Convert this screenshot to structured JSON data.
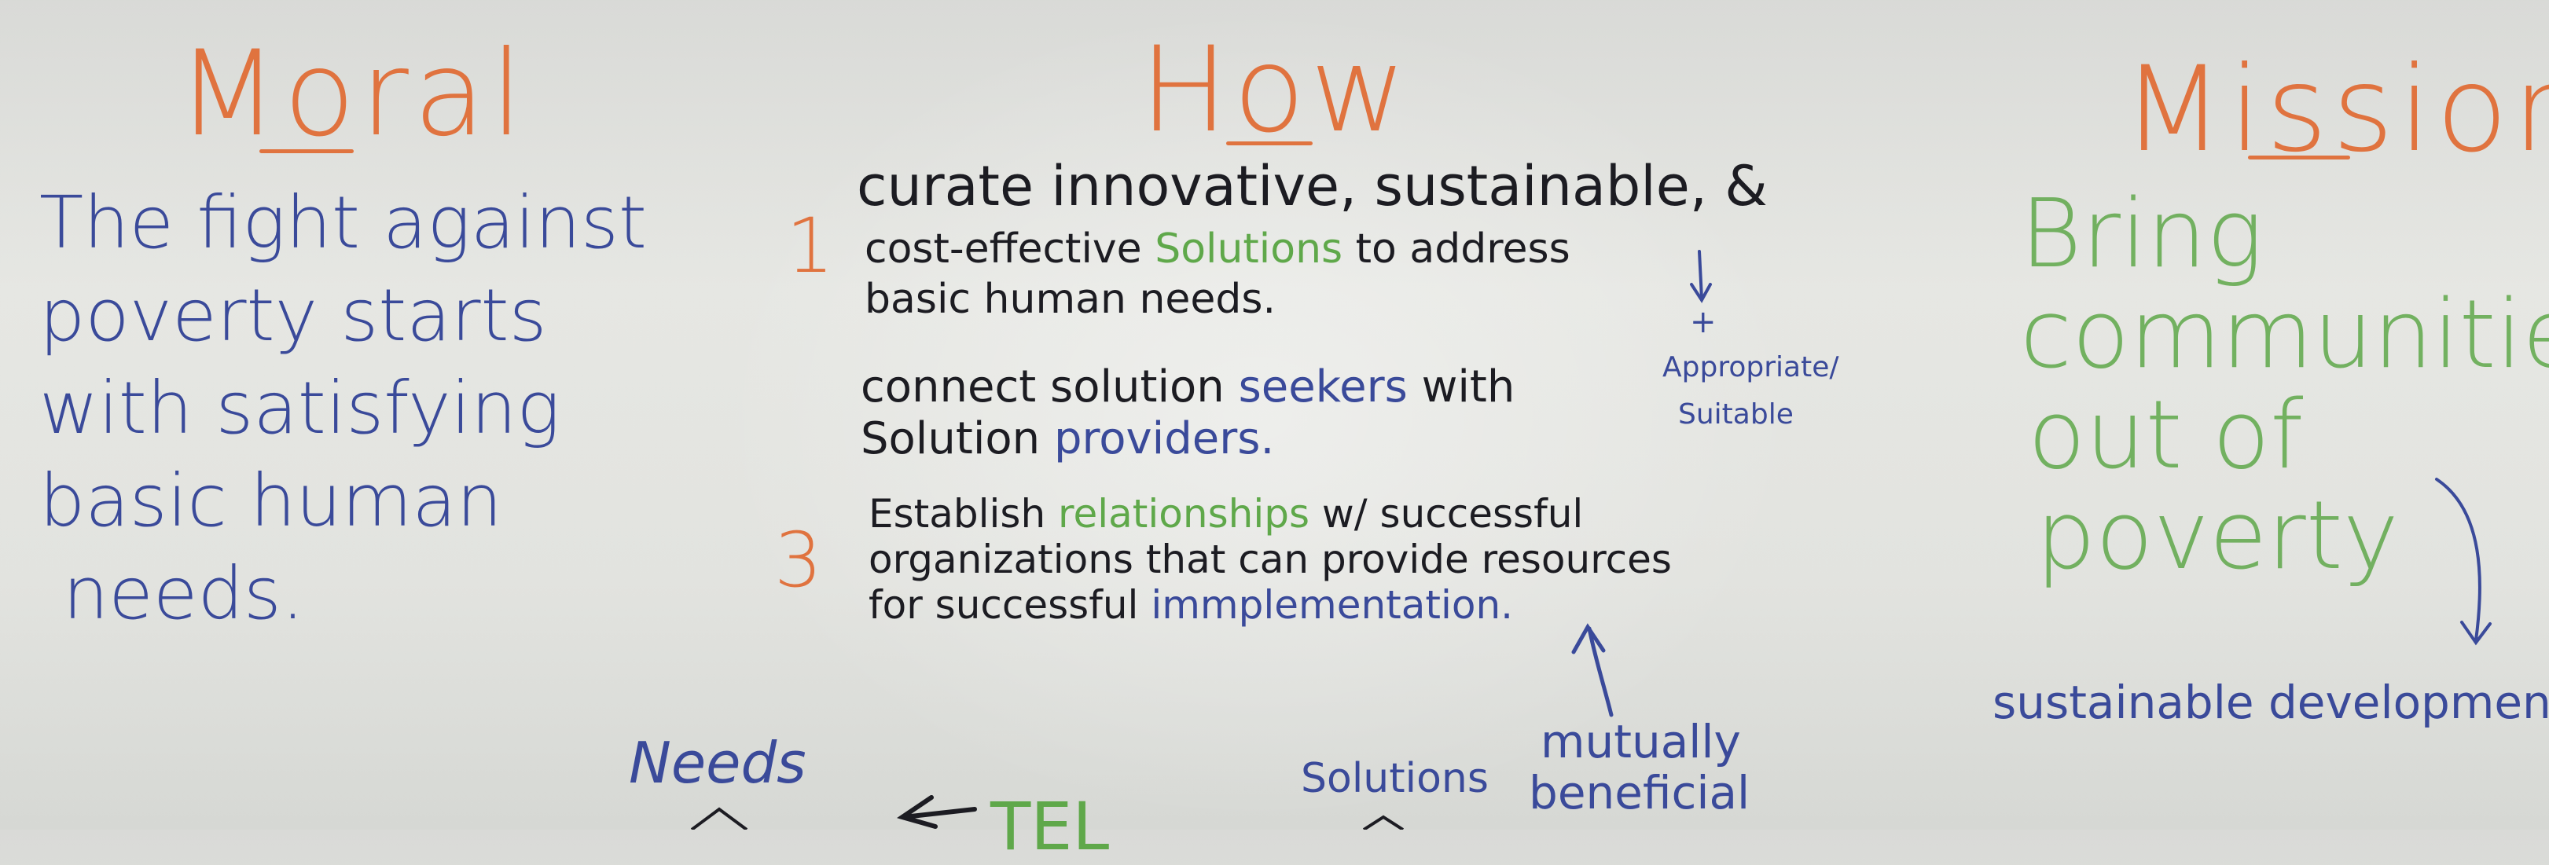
{
  "headings": {
    "moral": "Moral",
    "how": "How",
    "mission": "Mission"
  },
  "moral_lines": [
    "The fight against",
    "poverty starts",
    "with satisfying",
    "basic human",
    "needs."
  ],
  "how": {
    "n1": "1",
    "item1": {
      "l1": "curate innovative, sustainable, &",
      "l2_a": "cost-effective ",
      "l2_b": "Solutions",
      "l2_c": " to address",
      "l3": "basic human needs."
    },
    "item2": {
      "l1_a": "connect solution ",
      "l1_b": "seekers",
      "l1_c": " with",
      "l2_a": "Solution ",
      "l2_b": "providers."
    },
    "n3": "3",
    "item3": {
      "l1_a": "Establish ",
      "l1_b": "relationships",
      "l1_c": " w/ successful",
      "l2": "organizations that can provide resources",
      "l3_a": "for successful ",
      "l3_b": "immplementation."
    },
    "note": {
      "plus": "+",
      "l1": "Appropriate/",
      "l2": "Suitable"
    }
  },
  "mission_lines": [
    "Bring",
    "communities",
    "out of",
    "poverty"
  ],
  "sustainable": "sustainable development",
  "bottom": {
    "needs": "Needs",
    "tel": "TEL",
    "solutions": "Solutions",
    "mutually": "mutually",
    "beneficial": "beneficial"
  },
  "colors": {
    "orange": "#e0733f",
    "blue": "#3a4a9a",
    "dark": "#1c1c22",
    "green": "#5fa84a",
    "board": "#e3e4e0"
  }
}
